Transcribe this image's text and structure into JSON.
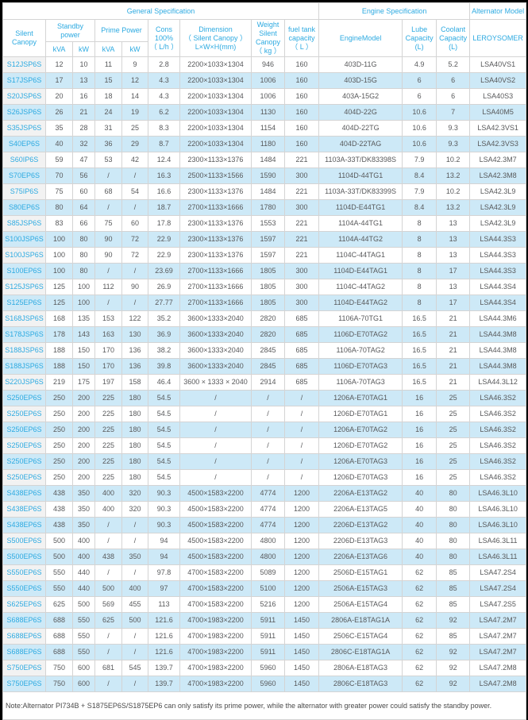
{
  "colors": {
    "accent": "#2daae1",
    "row_alt": "#cde9f7",
    "body_text": "#58595b"
  },
  "table": {
    "header": {
      "general": "General Specification",
      "engine_spec": "Engine Specification",
      "alternator_model": "Alternator Model",
      "silent_canopy": "Silent Canopy",
      "standby_power": "Standby\npower",
      "prime_power": "Prime Power",
      "standby_kva": "kVA",
      "standby_kw": "kW",
      "prime_kva": "kVA",
      "prime_kw": "kW",
      "cons": "Cons\n100%\n（ L/h ）",
      "dimension": "Dimension\n（ Silent Canopy ）\nL×W×H(mm)",
      "weight": "Weight\nSilent\nCanopy\n（ kg ）",
      "fuel": "fuel tank\ncapacity\n（ L ）",
      "engine_model": "EngineModel",
      "lube": "Lube\nCapacity\n(L)",
      "coolant": "Coolant\nCapacity\n(L)",
      "leroysomer": "LEROYSOMER"
    },
    "rows": [
      [
        "S12JSP6S",
        "12",
        "10",
        "11",
        "9",
        "2.8",
        "2200×1033×1304",
        "946",
        "160",
        "403D-11G",
        "4.9",
        "5.2",
        "LSA40VS1"
      ],
      [
        "S17JSP6S",
        "17",
        "13",
        "15",
        "12",
        "4.3",
        "2200×1033×1304",
        "1006",
        "160",
        "403D-15G",
        "6",
        "6",
        "LSA40VS2"
      ],
      [
        "S20JSP6S",
        "20",
        "16",
        "18",
        "14",
        "4.3",
        "2200×1033×1304",
        "1006",
        "160",
        "403A-15G2",
        "6",
        "6",
        "LSA40S3"
      ],
      [
        "S26JSP6S",
        "26",
        "21",
        "24",
        "19",
        "6.2",
        "2200×1033×1304",
        "1130",
        "160",
        "404D-22G",
        "10.6",
        "7",
        "LSA40M5"
      ],
      [
        "S35JSP6S",
        "35",
        "28",
        "31",
        "25",
        "8.3",
        "2200×1033×1304",
        "1154",
        "160",
        "404D-22TG",
        "10.6",
        "9.3",
        "LSA42.3VS1"
      ],
      [
        "S40EP6S",
        "40",
        "32",
        "36",
        "29",
        "8.7",
        "2200×1033×1304",
        "1180",
        "160",
        "404D-22TAG",
        "10.6",
        "9.3",
        "LSA42.3VS3"
      ],
      [
        "S60IP6S",
        "59",
        "47",
        "53",
        "42",
        "12.4",
        "2300×1133×1376",
        "1484",
        "221",
        "1103A-33T/DK83398S",
        "7.9",
        "10.2",
        "LSA42.3M7"
      ],
      [
        "S70EP6S",
        "70",
        "56",
        "/",
        "/",
        "16.3",
        "2500×1133×1566",
        "1590",
        "300",
        "1104D-44TG1",
        "8.4",
        "13.2",
        "LSA42.3M8"
      ],
      [
        "S75IP6S",
        "75",
        "60",
        "68",
        "54",
        "16.6",
        "2300×1133×1376",
        "1484",
        "221",
        "1103A-33T/DK83399S",
        "7.9",
        "10.2",
        "LSA42.3L9"
      ],
      [
        "S80EP6S",
        "80",
        "64",
        "/",
        "/",
        "18.7",
        "2700×1133×1666",
        "1780",
        "300",
        "1104D-E44TG1",
        "8.4",
        "13.2",
        "LSA42.3L9"
      ],
      [
        "S85JSP6S",
        "83",
        "66",
        "75",
        "60",
        "17.8",
        "2300×1133×1376",
        "1553",
        "221",
        "1104A-44TG1",
        "8",
        "13",
        "LSA42.3L9"
      ],
      [
        "S100JSP6S",
        "100",
        "80",
        "90",
        "72",
        "22.9",
        "2300×1133×1376",
        "1597",
        "221",
        "1104A-44TG2",
        "8",
        "13",
        "LSA44.3S3"
      ],
      [
        "S100JSP6S",
        "100",
        "80",
        "90",
        "72",
        "22.9",
        "2300×1133×1376",
        "1597",
        "221",
        "1104C-44TAG1",
        "8",
        "13",
        "LSA44.3S3"
      ],
      [
        "S100EP6S",
        "100",
        "80",
        "/",
        "/",
        "23.69",
        "2700×1133×1666",
        "1805",
        "300",
        "1104D-E44TAG1",
        "8",
        "17",
        "LSA44.3S3"
      ],
      [
        "S125JSP6S",
        "125",
        "100",
        "112",
        "90",
        "26.9",
        "2700×1133×1666",
        "1805",
        "300",
        "1104C-44TAG2",
        "8",
        "13",
        "LSA44.3S4"
      ],
      [
        "S125EP6S",
        "125",
        "100",
        "/",
        "/",
        "27.77",
        "2700×1133×1666",
        "1805",
        "300",
        "1104D-E44TAG2",
        "8",
        "17",
        "LSA44.3S4"
      ],
      [
        "S168JSP6S",
        "168",
        "135",
        "153",
        "122",
        "35.2",
        "3600×1333×2040",
        "2820",
        "685",
        "1106A-70TG1",
        "16.5",
        "21",
        "LSA44.3M6"
      ],
      [
        "S178JSP6S",
        "178",
        "143",
        "163",
        "130",
        "36.9",
        "3600×1333×2040",
        "2820",
        "685",
        "1106D-E70TAG2",
        "16.5",
        "21",
        "LSA44.3M8"
      ],
      [
        "S188JSP6S",
        "188",
        "150",
        "170",
        "136",
        "38.2",
        "3600×1333×2040",
        "2845",
        "685",
        "1106A-70TAG2",
        "16.5",
        "21",
        "LSA44.3M8"
      ],
      [
        "S188JSP6S",
        "188",
        "150",
        "170",
        "136",
        "39.8",
        "3600×1333×2040",
        "2845",
        "685",
        "1106D-E70TAG3",
        "16.5",
        "21",
        "LSA44.3M8"
      ],
      [
        "S220JSP6S",
        "219",
        "175",
        "197",
        "158",
        "46.4",
        "3600 × 1333 × 2040",
        "2914",
        "685",
        "1106A-70TAG3",
        "16.5",
        "21",
        "LSA44.3L12"
      ],
      [
        "S250EP6S",
        "250",
        "200",
        "225",
        "180",
        "54.5",
        "/",
        "/",
        "/",
        "1206A-E70TAG1",
        "16",
        "25",
        "LSA46.3S2"
      ],
      [
        "S250EP6S",
        "250",
        "200",
        "225",
        "180",
        "54.5",
        "/",
        "/",
        "/",
        "1206D-E70TAG1",
        "16",
        "25",
        "LSA46.3S2"
      ],
      [
        "S250EP6S",
        "250",
        "200",
        "225",
        "180",
        "54.5",
        "/",
        "/",
        "/",
        "1206A-E70TAG2",
        "16",
        "25",
        "LSA46.3S2"
      ],
      [
        "S250EP6S",
        "250",
        "200",
        "225",
        "180",
        "54.5",
        "/",
        "/",
        "/",
        "1206D-E70TAG2",
        "16",
        "25",
        "LSA46.3S2"
      ],
      [
        "S250EP6S",
        "250",
        "200",
        "225",
        "180",
        "54.5",
        "/",
        "/",
        "/",
        "1206A-E70TAG3",
        "16",
        "25",
        "LSA46.3S2"
      ],
      [
        "S250EP6S",
        "250",
        "200",
        "225",
        "180",
        "54.5",
        "/",
        "/",
        "/",
        "1206D-E70TAG3",
        "16",
        "25",
        "LSA46.3S2"
      ],
      [
        "S438EP6S",
        "438",
        "350",
        "400",
        "320",
        "90.3",
        "4500×1583×2200",
        "4774",
        "1200",
        "2206A-E13TAG2",
        "40",
        "80",
        "LSA46.3L10"
      ],
      [
        "S438EP6S",
        "438",
        "350",
        "400",
        "320",
        "90.3",
        "4500×1583×2200",
        "4774",
        "1200",
        "2206A-E13TAG5",
        "40",
        "80",
        "LSA46.3L10"
      ],
      [
        "S438EP6S",
        "438",
        "350",
        "/",
        "/",
        "90.3",
        "4500×1583×2200",
        "4774",
        "1200",
        "2206D-E13TAG2",
        "40",
        "80",
        "LSA46.3L10"
      ],
      [
        "S500EP6S",
        "500",
        "400",
        "/",
        "/",
        "94",
        "4500×1583×2200",
        "4800",
        "1200",
        "2206D-E13TAG3",
        "40",
        "80",
        "LSA46.3L11"
      ],
      [
        "S500EP6S",
        "500",
        "400",
        "438",
        "350",
        "94",
        "4500×1583×2200",
        "4800",
        "1200",
        "2206A-E13TAG6",
        "40",
        "80",
        "LSA46.3L11"
      ],
      [
        "S550EP6S",
        "550",
        "440",
        "/",
        "/",
        "97.8",
        "4700×1583×2200",
        "5089",
        "1200",
        "2506D-E15TAG1",
        "62",
        "85",
        "LSA47.2S4"
      ],
      [
        "S550EP6S",
        "550",
        "440",
        "500",
        "400",
        "97",
        "4700×1583×2200",
        "5100",
        "1200",
        "2506A-E15TAG3",
        "62",
        "85",
        "LSA47.2S4"
      ],
      [
        "S625EP6S",
        "625",
        "500",
        "569",
        "455",
        "113",
        "4700×1583×2200",
        "5216",
        "1200",
        "2506A-E15TAG4",
        "62",
        "85",
        "LSA47.2S5"
      ],
      [
        "S688EP6S",
        "688",
        "550",
        "625",
        "500",
        "121.6",
        "4700×1983×2200",
        "5911",
        "1450",
        "2806A-E18TAG1A",
        "62",
        "92",
        "LSA47.2M7"
      ],
      [
        "S688EP6S",
        "688",
        "550",
        "/",
        "/",
        "121.6",
        "4700×1983×2200",
        "5911",
        "1450",
        "2506C-E15TAG4",
        "62",
        "85",
        "LSA47.2M7"
      ],
      [
        "S688EP6S",
        "688",
        "550",
        "/",
        "/",
        "121.6",
        "4700×1983×2200",
        "5911",
        "1450",
        "2806C-E18TAG1A",
        "62",
        "92",
        "LSA47.2M7"
      ],
      [
        "S750EP6S",
        "750",
        "600",
        "681",
        "545",
        "139.7",
        "4700×1983×2200",
        "5960",
        "1450",
        "2806A-E18TAG3",
        "62",
        "92",
        "LSA47.2M8"
      ],
      [
        "S750EP6S",
        "750",
        "600",
        "/",
        "/",
        "139.7",
        "4700×1983×2200",
        "5960",
        "1450",
        "2806C-E18TAG3",
        "62",
        "92",
        "LSA47.2M8"
      ]
    ]
  },
  "note": "Note:Alternator PI734B + S1875EP6S/S1875EP6 can only satisfy its prime power, while the alternator with greater power could satisfy the standby power."
}
